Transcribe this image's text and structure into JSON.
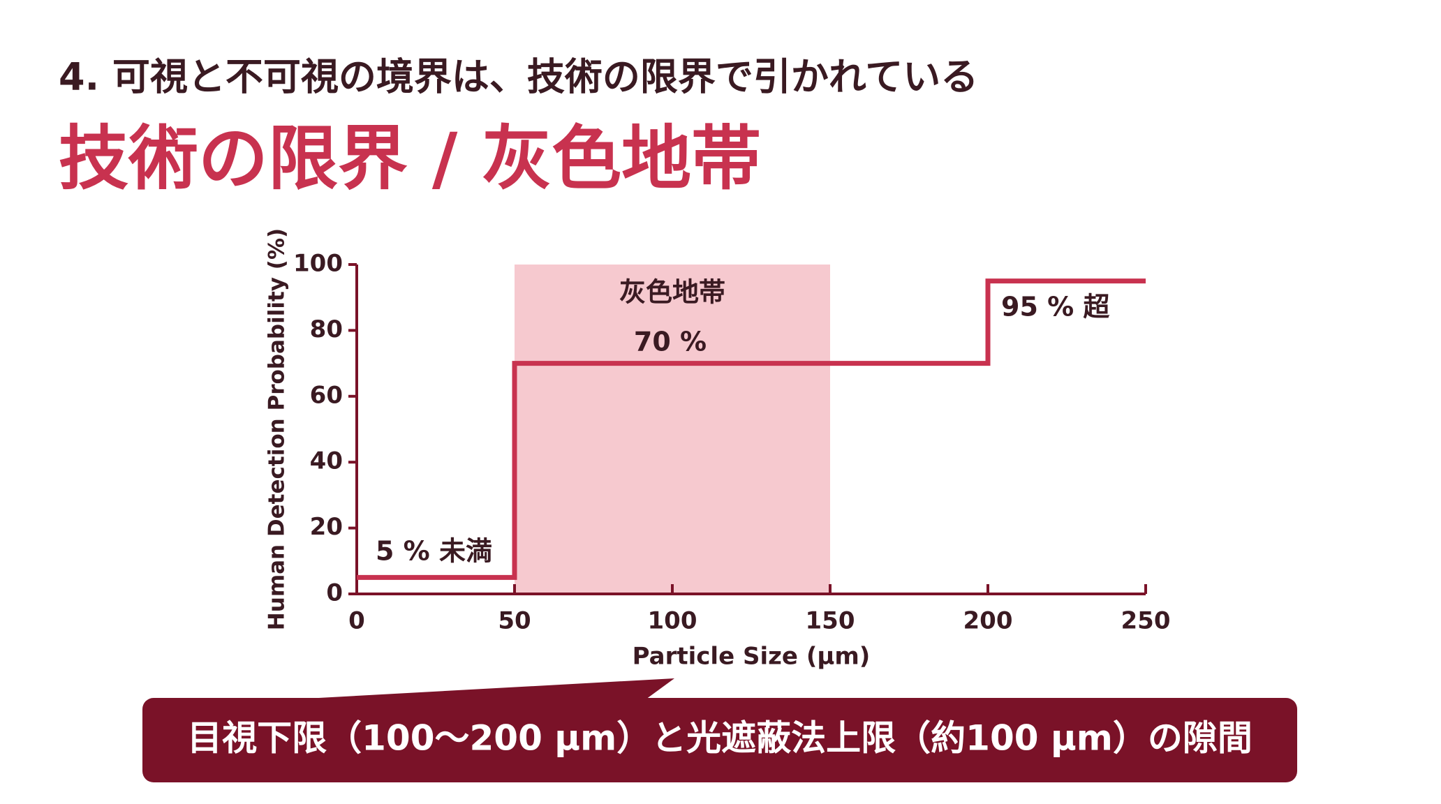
{
  "slide": {
    "kicker": "4. 可視と不可視の境界は、技術の限界で引かれている",
    "title": "技術の限界 / 灰色地帯"
  },
  "chart_data": {
    "type": "line",
    "x_label": "Particle Size (µm)",
    "y_label": "Human Detection Probability (%)",
    "x": [
      0,
      50,
      50,
      200,
      200,
      250
    ],
    "series": [
      {
        "color": "#c8324f",
        "values": [
          5,
          5,
          70,
          70,
          95,
          95
        ]
      }
    ],
    "xlim": [
      0,
      250
    ],
    "xticks": [
      0,
      50,
      100,
      150,
      200,
      250
    ],
    "ylim": [
      0,
      100
    ],
    "yticks": [
      0,
      20,
      40,
      60,
      80,
      100
    ],
    "band": {
      "x": [
        50,
        150
      ],
      "label": "灰色地帯",
      "color": "#f6c9cf"
    },
    "annotations": [
      "5 % 未満",
      "70 %",
      "95 % 超"
    ]
  },
  "callout": "目視下限（100〜200 µm）と光遮蔽法上限（約100 µm）の隙間"
}
